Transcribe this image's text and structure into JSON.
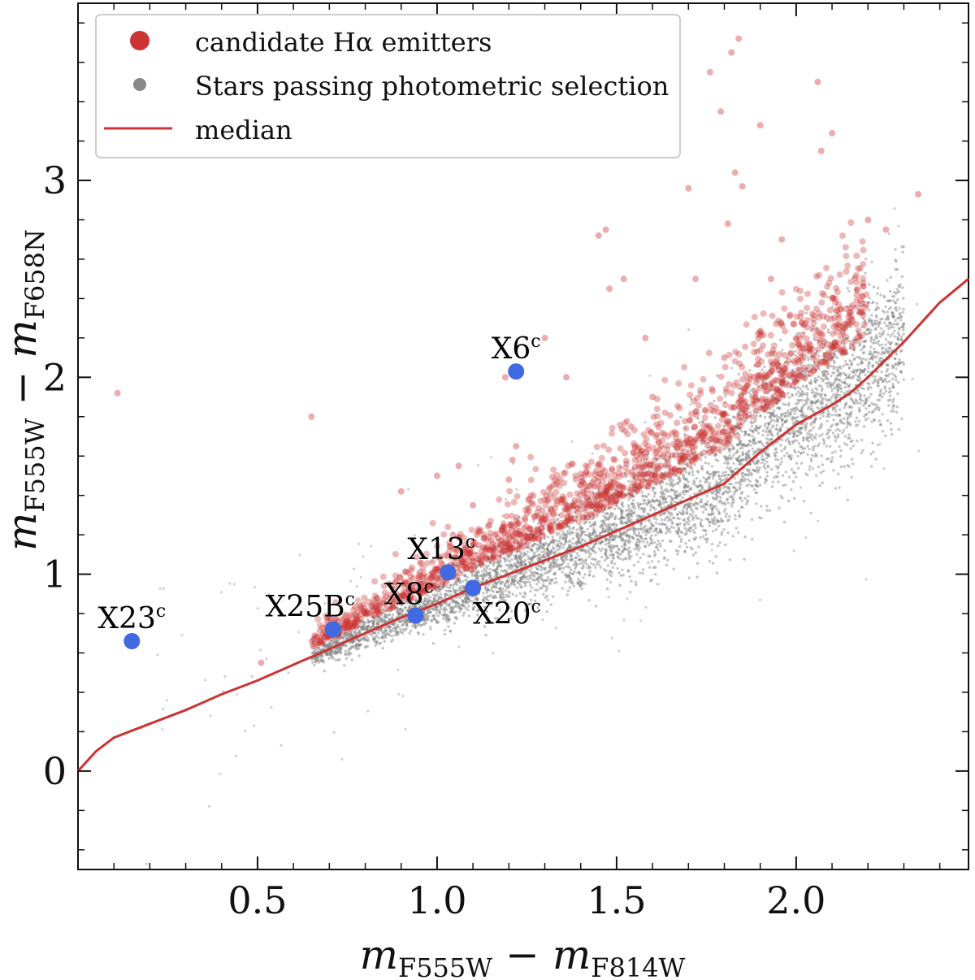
{
  "chart_data": {
    "type": "scatter",
    "title": "",
    "xlabel": {
      "base": "m",
      "sub1": "F555W",
      "minus": " − ",
      "sub2": "F814W"
    },
    "ylabel": {
      "base": "m",
      "sub1": "F555W",
      "minus": " − ",
      "sub2": "F658N"
    },
    "xlim": [
      0.0,
      2.48
    ],
    "ylim": [
      -0.5,
      3.9
    ],
    "x_ticks": [
      0.5,
      1.0,
      1.5,
      2.0
    ],
    "x_tick_labels": [
      "0.5",
      "1.0",
      "1.5",
      "2.0"
    ],
    "y_ticks": [
      0,
      1,
      2,
      3
    ],
    "y_tick_labels": [
      "0",
      "1",
      "2",
      "3"
    ],
    "grid": false,
    "legend_position": "top-left",
    "legend": [
      {
        "label": "candidate Hα emitters",
        "marker": "circle",
        "color": "#cc3333"
      },
      {
        "label": "Stars passing photometric selection",
        "marker": "circle",
        "color": "#888888"
      },
      {
        "label": "median",
        "marker": "line",
        "color": "#cc3333"
      }
    ],
    "colors": {
      "emitters": "#cc3333",
      "stars": "#808080",
      "median": "#cc3333",
      "sources": "#4169e1"
    },
    "median": {
      "name": "median",
      "x": [
        0.0,
        0.05,
        0.1,
        0.2,
        0.3,
        0.4,
        0.5,
        0.6,
        0.7,
        0.8,
        0.9,
        1.0,
        1.1,
        1.2,
        1.3,
        1.4,
        1.5,
        1.6,
        1.7,
        1.8,
        1.9,
        2.0,
        2.1,
        2.15,
        2.2,
        2.3,
        2.4,
        2.48
      ],
      "y": [
        0.0,
        0.1,
        0.17,
        0.24,
        0.31,
        0.39,
        0.46,
        0.54,
        0.62,
        0.7,
        0.78,
        0.85,
        0.93,
        1.0,
        1.07,
        1.14,
        1.22,
        1.3,
        1.38,
        1.46,
        1.62,
        1.76,
        1.86,
        1.92,
        2.0,
        2.18,
        2.38,
        2.5
      ]
    },
    "emitters_outliers": {
      "name": "candidate Hα emitters (isolated)",
      "x": [
        0.11,
        0.65,
        0.51,
        0.9,
        1.0,
        1.06,
        1.1,
        1.19,
        1.22,
        1.21,
        1.2,
        1.3,
        1.36,
        1.45,
        1.47,
        1.48,
        1.52,
        1.54,
        1.58,
        1.6,
        1.63,
        1.7,
        1.72,
        1.76,
        1.79,
        1.8,
        1.81,
        1.82,
        1.83,
        1.84,
        1.85,
        1.9,
        1.93,
        1.96,
        2.06,
        2.07,
        2.1,
        2.2,
        2.25,
        2.34
      ],
      "y": [
        1.92,
        1.8,
        0.55,
        1.42,
        1.5,
        1.55,
        1.35,
        2.0,
        1.65,
        1.58,
        1.48,
        2.2,
        2.0,
        2.72,
        2.75,
        2.45,
        2.5,
        1.75,
        2.2,
        1.9,
        3.2,
        2.96,
        2.5,
        3.55,
        3.35,
        2.1,
        2.78,
        3.65,
        3.04,
        3.72,
        2.97,
        3.28,
        2.5,
        2.7,
        3.5,
        3.15,
        3.24,
        2.8,
        2.75,
        2.93
      ]
    },
    "sources": [
      {
        "name": "X23",
        "sup": "c",
        "x": 0.15,
        "y": 0.66
      },
      {
        "name": "X25B",
        "sup": "c",
        "x": 0.71,
        "y": 0.72
      },
      {
        "name": "X8",
        "sup": "c",
        "x": 0.94,
        "y": 0.79
      },
      {
        "name": "X13",
        "sup": "c",
        "x": 1.03,
        "y": 1.01
      },
      {
        "name": "X20",
        "sup": "c",
        "x": 1.1,
        "y": 0.93
      },
      {
        "name": "X6",
        "sup": "c",
        "x": 1.22,
        "y": 2.03
      }
    ],
    "cloud_description": {
      "stars_x_range": [
        0.65,
        2.3
      ],
      "emitters_x_range": [
        0.65,
        2.2
      ],
      "emitters_offset_above_median": [
        0.05,
        0.6
      ]
    }
  }
}
